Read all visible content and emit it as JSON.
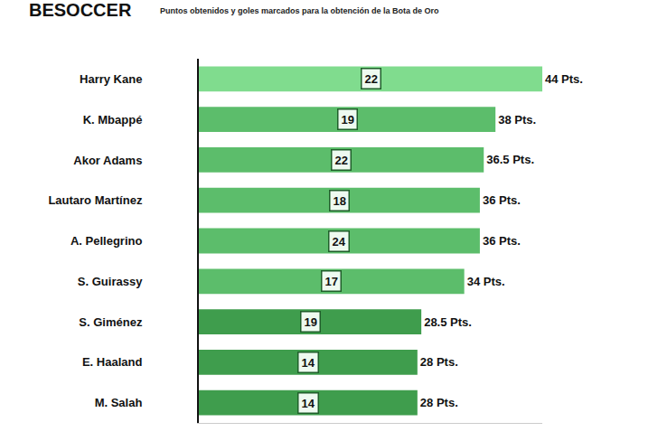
{
  "chart_data": {
    "type": "bar",
    "orientation": "horizontal",
    "title": "BESOCCER",
    "subtitle": "Puntos obtenidos y goles marcados para la obtención de la Bota de Oro",
    "categories": [
      "Harry Kane",
      "K. Mbappé",
      "Akor Adams",
      "Lautaro Martínez",
      "A. Pellegrino",
      "S. Guirassy",
      "S. Giménez",
      "E. Haaland",
      "M. Salah"
    ],
    "values": [
      44,
      38,
      36.5,
      36,
      36,
      34,
      28.5,
      28,
      28
    ],
    "value_labels": [
      "44 Pts.",
      "38 Pts.",
      "36.5 Pts.",
      "36 Pts.",
      "36 Pts.",
      "34 Pts.",
      "28.5 Pts.",
      "28 Pts.",
      "28 Pts."
    ],
    "goals": [
      22,
      19,
      22,
      18,
      24,
      17,
      19,
      14,
      14
    ],
    "colors": [
      "#80dc8e",
      "#5cbd6b",
      "#5cbd6b",
      "#5cbd6b",
      "#5cbd6b",
      "#5cbd6b",
      "#3f9d4d",
      "#3f9d4d",
      "#3f9d4d"
    ],
    "data_labels": true,
    "tick_labels": "y",
    "xlim": [
      0,
      44
    ],
    "xticks": [],
    "grid": false
  }
}
